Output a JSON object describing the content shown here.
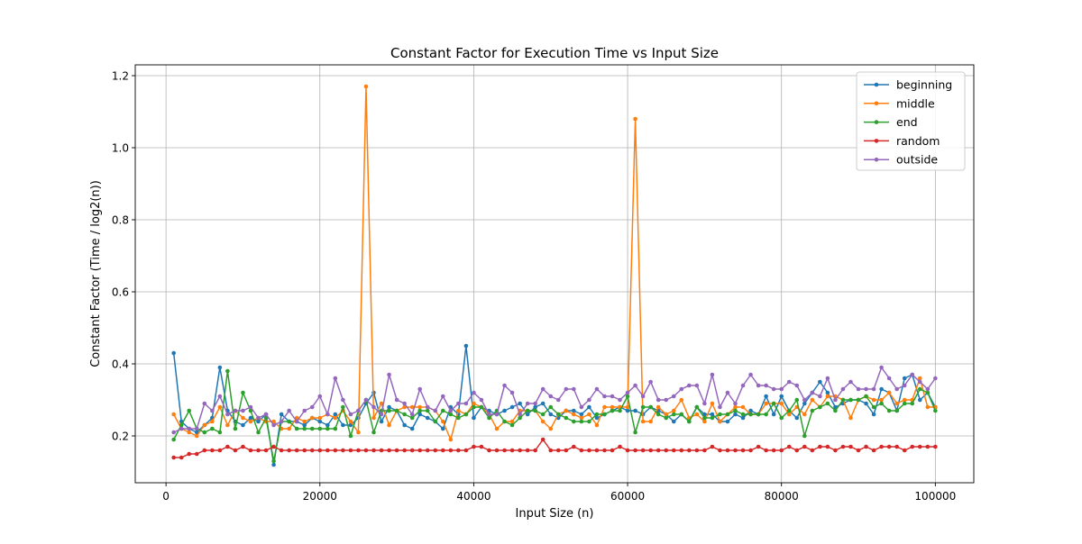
{
  "chart_data": {
    "type": "line",
    "title": "Constant Factor for Execution Time vs Input Size",
    "xlabel": "Input Size (n)",
    "ylabel": "Constant Factor (Time / log2(n))",
    "xlim": [
      -4000,
      105000
    ],
    "ylim": [
      0.07,
      1.23
    ],
    "xticks": [
      0,
      20000,
      40000,
      60000,
      80000,
      100000
    ],
    "xtick_labels": [
      "0",
      "20000",
      "40000",
      "60000",
      "80000",
      "100000"
    ],
    "yticks": [
      0.2,
      0.4,
      0.6,
      0.8,
      1.0,
      1.2
    ],
    "ytick_labels": [
      "0.2",
      "0.4",
      "0.6",
      "0.8",
      "1.0",
      "1.2"
    ],
    "grid": true,
    "legend_position": "top-right",
    "x": [
      1000,
      2000,
      3000,
      4000,
      5000,
      6000,
      7000,
      8000,
      9000,
      10000,
      11000,
      12000,
      13000,
      14000,
      15000,
      16000,
      17000,
      18000,
      19000,
      20000,
      21000,
      22000,
      23000,
      24000,
      25000,
      26000,
      27000,
      28000,
      29000,
      30000,
      31000,
      32000,
      33000,
      34000,
      35000,
      36000,
      37000,
      38000,
      39000,
      40000,
      41000,
      42000,
      43000,
      44000,
      45000,
      46000,
      47000,
      48000,
      49000,
      50000,
      51000,
      52000,
      53000,
      54000,
      55000,
      56000,
      57000,
      58000,
      59000,
      60000,
      61000,
      62000,
      63000,
      64000,
      65000,
      66000,
      67000,
      68000,
      69000,
      70000,
      71000,
      72000,
      73000,
      74000,
      75000,
      76000,
      77000,
      78000,
      79000,
      80000,
      81000,
      82000,
      83000,
      84000,
      85000,
      86000,
      87000,
      88000,
      89000,
      90000,
      91000,
      92000,
      93000,
      94000,
      95000,
      96000,
      97000,
      98000,
      99000,
      100000
    ],
    "series": [
      {
        "name": "beginning",
        "color": "#1f77b4",
        "values": [
          0.43,
          0.24,
          0.22,
          0.21,
          0.23,
          0.25,
          0.39,
          0.27,
          0.24,
          0.23,
          0.25,
          0.24,
          0.26,
          0.12,
          0.26,
          0.24,
          0.24,
          0.23,
          0.25,
          0.24,
          0.23,
          0.26,
          0.23,
          0.23,
          0.25,
          0.29,
          0.32,
          0.24,
          0.28,
          0.27,
          0.23,
          0.22,
          0.26,
          0.25,
          0.24,
          0.22,
          0.28,
          0.26,
          0.45,
          0.25,
          0.28,
          0.27,
          0.26,
          0.27,
          0.28,
          0.29,
          0.26,
          0.28,
          0.29,
          0.26,
          0.25,
          0.27,
          0.27,
          0.26,
          0.28,
          0.25,
          0.26,
          0.27,
          0.28,
          0.27,
          0.27,
          0.26,
          0.28,
          0.27,
          0.26,
          0.24,
          0.26,
          0.24,
          0.28,
          0.26,
          0.26,
          0.24,
          0.24,
          0.26,
          0.25,
          0.27,
          0.26,
          0.31,
          0.26,
          0.31,
          0.27,
          0.25,
          0.29,
          0.32,
          0.35,
          0.32,
          0.28,
          0.29,
          0.3,
          0.3,
          0.29,
          0.26,
          0.33,
          0.32,
          0.27,
          0.36,
          0.37,
          0.3,
          0.32,
          0.28
        ]
      },
      {
        "name": "middle",
        "color": "#ff7f0e",
        "values": [
          0.26,
          0.22,
          0.21,
          0.2,
          0.23,
          0.24,
          0.28,
          0.23,
          0.27,
          0.25,
          0.24,
          0.25,
          0.24,
          0.24,
          0.22,
          0.22,
          0.25,
          0.24,
          0.25,
          0.25,
          0.26,
          0.25,
          0.27,
          0.24,
          0.21,
          1.17,
          0.25,
          0.29,
          0.23,
          0.27,
          0.28,
          0.28,
          0.28,
          0.28,
          0.27,
          0.24,
          0.19,
          0.27,
          0.26,
          0.29,
          0.28,
          0.26,
          0.22,
          0.24,
          0.24,
          0.27,
          0.27,
          0.27,
          0.24,
          0.22,
          0.26,
          0.27,
          0.26,
          0.25,
          0.26,
          0.23,
          0.28,
          0.28,
          0.28,
          0.28,
          1.08,
          0.24,
          0.24,
          0.28,
          0.26,
          0.27,
          0.3,
          0.25,
          0.26,
          0.24,
          0.29,
          0.24,
          0.26,
          0.28,
          0.28,
          0.26,
          0.26,
          0.29,
          0.29,
          0.29,
          0.26,
          0.28,
          0.26,
          0.3,
          0.28,
          0.31,
          0.31,
          0.3,
          0.25,
          0.3,
          0.31,
          0.3,
          0.3,
          0.32,
          0.29,
          0.3,
          0.3,
          0.36,
          0.28,
          0.28
        ]
      },
      {
        "name": "end",
        "color": "#2ca02c",
        "values": [
          0.19,
          0.23,
          0.27,
          0.22,
          0.21,
          0.22,
          0.21,
          0.38,
          0.22,
          0.32,
          0.27,
          0.21,
          0.25,
          0.13,
          0.24,
          0.24,
          0.22,
          0.22,
          0.22,
          0.22,
          0.22,
          0.22,
          0.28,
          0.2,
          0.27,
          0.3,
          0.21,
          0.27,
          0.27,
          0.27,
          0.26,
          0.25,
          0.27,
          0.27,
          0.24,
          0.27,
          0.26,
          0.25,
          0.26,
          0.28,
          0.28,
          0.25,
          0.27,
          0.24,
          0.23,
          0.25,
          0.27,
          0.27,
          0.26,
          0.28,
          0.26,
          0.25,
          0.24,
          0.24,
          0.24,
          0.26,
          0.26,
          0.27,
          0.27,
          0.31,
          0.21,
          0.28,
          0.28,
          0.26,
          0.25,
          0.26,
          0.26,
          0.24,
          0.28,
          0.25,
          0.25,
          0.26,
          0.26,
          0.27,
          0.26,
          0.26,
          0.26,
          0.26,
          0.29,
          0.25,
          0.27,
          0.3,
          0.2,
          0.27,
          0.28,
          0.29,
          0.27,
          0.3,
          0.3,
          0.3,
          0.31,
          0.28,
          0.29,
          0.27,
          0.27,
          0.29,
          0.29,
          0.33,
          0.32,
          0.27
        ]
      },
      {
        "name": "random",
        "color": "#d62728",
        "values": [
          0.14,
          0.14,
          0.15,
          0.15,
          0.16,
          0.16,
          0.16,
          0.17,
          0.16,
          0.17,
          0.16,
          0.16,
          0.16,
          0.17,
          0.16,
          0.16,
          0.16,
          0.16,
          0.16,
          0.16,
          0.16,
          0.16,
          0.16,
          0.16,
          0.16,
          0.16,
          0.16,
          0.16,
          0.16,
          0.16,
          0.16,
          0.16,
          0.16,
          0.16,
          0.16,
          0.16,
          0.16,
          0.16,
          0.16,
          0.17,
          0.17,
          0.16,
          0.16,
          0.16,
          0.16,
          0.16,
          0.16,
          0.16,
          0.19,
          0.16,
          0.16,
          0.16,
          0.17,
          0.16,
          0.16,
          0.16,
          0.16,
          0.16,
          0.17,
          0.16,
          0.16,
          0.16,
          0.16,
          0.16,
          0.16,
          0.16,
          0.16,
          0.16,
          0.16,
          0.16,
          0.17,
          0.16,
          0.16,
          0.16,
          0.16,
          0.16,
          0.17,
          0.16,
          0.16,
          0.16,
          0.17,
          0.16,
          0.17,
          0.16,
          0.17,
          0.17,
          0.16,
          0.17,
          0.17,
          0.16,
          0.17,
          0.16,
          0.17,
          0.17,
          0.17,
          0.16,
          0.17,
          0.17,
          0.17,
          0.17
        ]
      },
      {
        "name": "outside",
        "color": "#9467bd",
        "values": [
          0.21,
          0.22,
          0.22,
          0.22,
          0.29,
          0.27,
          0.31,
          0.26,
          0.27,
          0.27,
          0.28,
          0.25,
          0.26,
          0.23,
          0.24,
          0.27,
          0.24,
          0.27,
          0.28,
          0.31,
          0.26,
          0.36,
          0.3,
          0.26,
          0.27,
          0.3,
          0.28,
          0.26,
          0.37,
          0.3,
          0.29,
          0.26,
          0.33,
          0.28,
          0.27,
          0.31,
          0.27,
          0.29,
          0.29,
          0.32,
          0.3,
          0.26,
          0.26,
          0.34,
          0.32,
          0.26,
          0.29,
          0.29,
          0.33,
          0.31,
          0.3,
          0.33,
          0.33,
          0.28,
          0.3,
          0.33,
          0.31,
          0.31,
          0.3,
          0.32,
          0.34,
          0.31,
          0.35,
          0.3,
          0.3,
          0.31,
          0.33,
          0.34,
          0.34,
          0.29,
          0.37,
          0.28,
          0.32,
          0.29,
          0.34,
          0.37,
          0.34,
          0.34,
          0.33,
          0.33,
          0.35,
          0.34,
          0.3,
          0.32,
          0.31,
          0.36,
          0.3,
          0.33,
          0.35,
          0.33,
          0.33,
          0.33,
          0.39,
          0.36,
          0.33,
          0.34,
          0.37,
          0.35,
          0.33,
          0.36
        ]
      }
    ]
  }
}
